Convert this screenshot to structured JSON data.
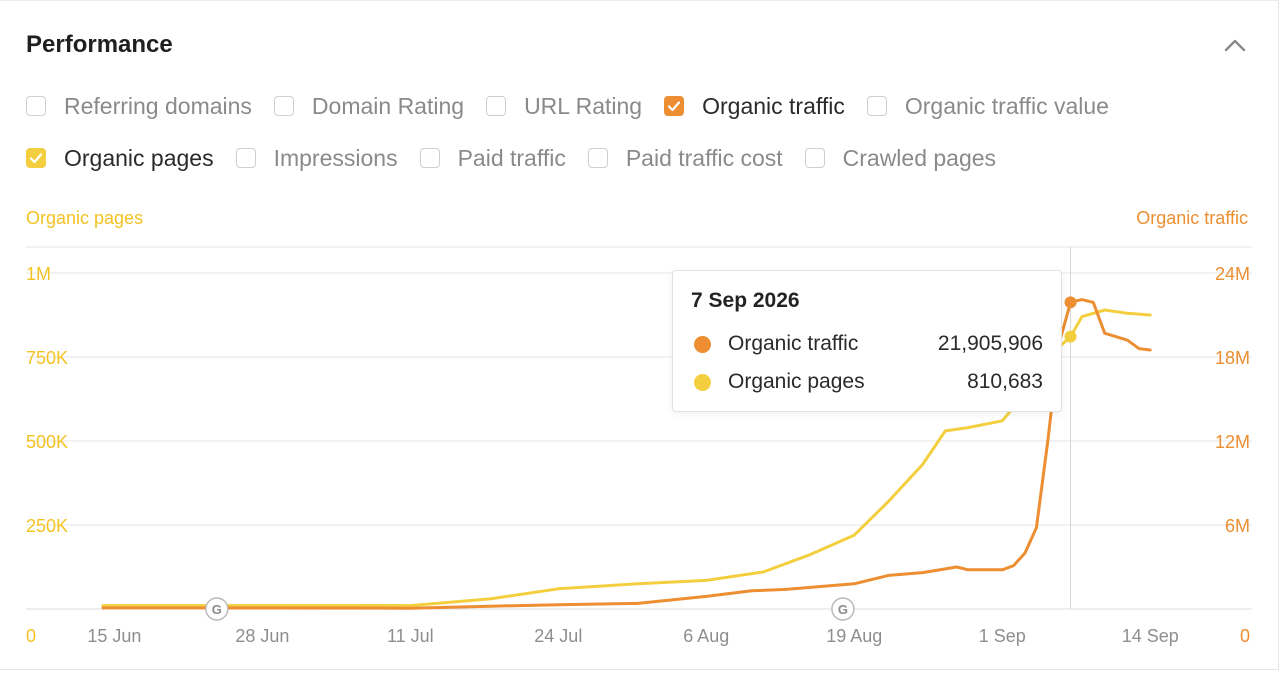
{
  "panel": {
    "title": "Performance"
  },
  "metrics": {
    "row1": [
      {
        "label": "Referring domains",
        "checked": false
      },
      {
        "label": "Domain Rating",
        "checked": false
      },
      {
        "label": "URL Rating",
        "checked": false
      },
      {
        "label": "Organic traffic",
        "checked": true,
        "color": "#ec8e31"
      },
      {
        "label": "Organic traffic value",
        "checked": false
      }
    ],
    "row2": [
      {
        "label": "Organic pages",
        "checked": true,
        "color": "#f3cf3f"
      },
      {
        "label": "Impressions",
        "checked": false
      },
      {
        "label": "Paid traffic",
        "checked": false
      },
      {
        "label": "Paid traffic cost",
        "checked": false
      },
      {
        "label": "Crawled pages",
        "checked": false
      }
    ]
  },
  "tooltip": {
    "date": "7 Sep 2026",
    "rows": [
      {
        "name": "Organic traffic",
        "value": "21,905,906",
        "color": "#ec8e31"
      },
      {
        "name": "Organic pages",
        "value": "810,683",
        "color": "#f3cf3f"
      }
    ]
  },
  "colors": {
    "organic_traffic": "#ec8e31",
    "organic_pages": "#f3cf3f",
    "left_axis_text": "#f3c322",
    "grid": "#e6e6e6",
    "tick_text": "#8e8e8e"
  },
  "chart_data": {
    "type": "line",
    "ylabel_left": "Organic pages",
    "ylabel_right": "Organic traffic",
    "x_ticks": [
      "15 Jun",
      "28 Jun",
      "11 Jul",
      "24 Jul",
      "6 Aug",
      "19 Aug",
      "1 Sep",
      "14 Sep"
    ],
    "x_range": [
      "2026-06-14",
      "2026-09-16"
    ],
    "y_left_ticks": [
      "0",
      "250K",
      "500K",
      "750K",
      "1M"
    ],
    "y_left_range": [
      0,
      1000000
    ],
    "y_right_ticks": [
      "0",
      "6M",
      "12M",
      "18M",
      "24M"
    ],
    "y_right_range": [
      0,
      24000000
    ],
    "grid": true,
    "google_update_markers": [
      "2026-06-24",
      "2026-08-18"
    ],
    "highlight_date": "2026-09-07",
    "series": [
      {
        "name": "Organic traffic",
        "axis": "right",
        "color": "#ec8e31",
        "points": [
          [
            "2026-06-14",
            80000
          ],
          [
            "2026-06-28",
            70000
          ],
          [
            "2026-07-11",
            60000
          ],
          [
            "2026-07-18",
            200000
          ],
          [
            "2026-07-24",
            300000
          ],
          [
            "2026-07-31",
            400000
          ],
          [
            "2026-08-06",
            900000
          ],
          [
            "2026-08-10",
            1300000
          ],
          [
            "2026-08-13",
            1400000
          ],
          [
            "2026-08-19",
            1800000
          ],
          [
            "2026-08-22",
            2400000
          ],
          [
            "2026-08-25",
            2600000
          ],
          [
            "2026-08-28",
            3000000
          ],
          [
            "2026-08-29",
            2800000
          ],
          [
            "2026-09-01",
            2800000
          ],
          [
            "2026-09-02",
            3100000
          ],
          [
            "2026-09-03",
            4000000
          ],
          [
            "2026-09-04",
            5800000
          ],
          [
            "2026-09-05",
            12000000
          ],
          [
            "2026-09-06",
            19000000
          ],
          [
            "2026-09-07",
            21905906
          ],
          [
            "2026-09-08",
            22100000
          ],
          [
            "2026-09-09",
            21900000
          ],
          [
            "2026-09-10",
            19700000
          ],
          [
            "2026-09-12",
            19200000
          ],
          [
            "2026-09-13",
            18600000
          ],
          [
            "2026-09-14",
            18500000
          ]
        ]
      },
      {
        "name": "Organic pages",
        "axis": "left",
        "color": "#f3cf3f",
        "points": [
          [
            "2026-06-14",
            10000
          ],
          [
            "2026-06-28",
            10000
          ],
          [
            "2026-07-11",
            10000
          ],
          [
            "2026-07-18",
            30000
          ],
          [
            "2026-07-24",
            60000
          ],
          [
            "2026-07-31",
            75000
          ],
          [
            "2026-08-06",
            85000
          ],
          [
            "2026-08-11",
            110000
          ],
          [
            "2026-08-15",
            160000
          ],
          [
            "2026-08-19",
            220000
          ],
          [
            "2026-08-22",
            320000
          ],
          [
            "2026-08-25",
            430000
          ],
          [
            "2026-08-27",
            530000
          ],
          [
            "2026-08-29",
            540000
          ],
          [
            "2026-09-01",
            560000
          ],
          [
            "2026-09-02",
            600000
          ],
          [
            "2026-09-04",
            690000
          ],
          [
            "2026-09-06",
            780000
          ],
          [
            "2026-09-07",
            810683
          ],
          [
            "2026-09-08",
            870000
          ],
          [
            "2026-09-10",
            890000
          ],
          [
            "2026-09-12",
            880000
          ],
          [
            "2026-09-14",
            875000
          ]
        ]
      }
    ]
  }
}
